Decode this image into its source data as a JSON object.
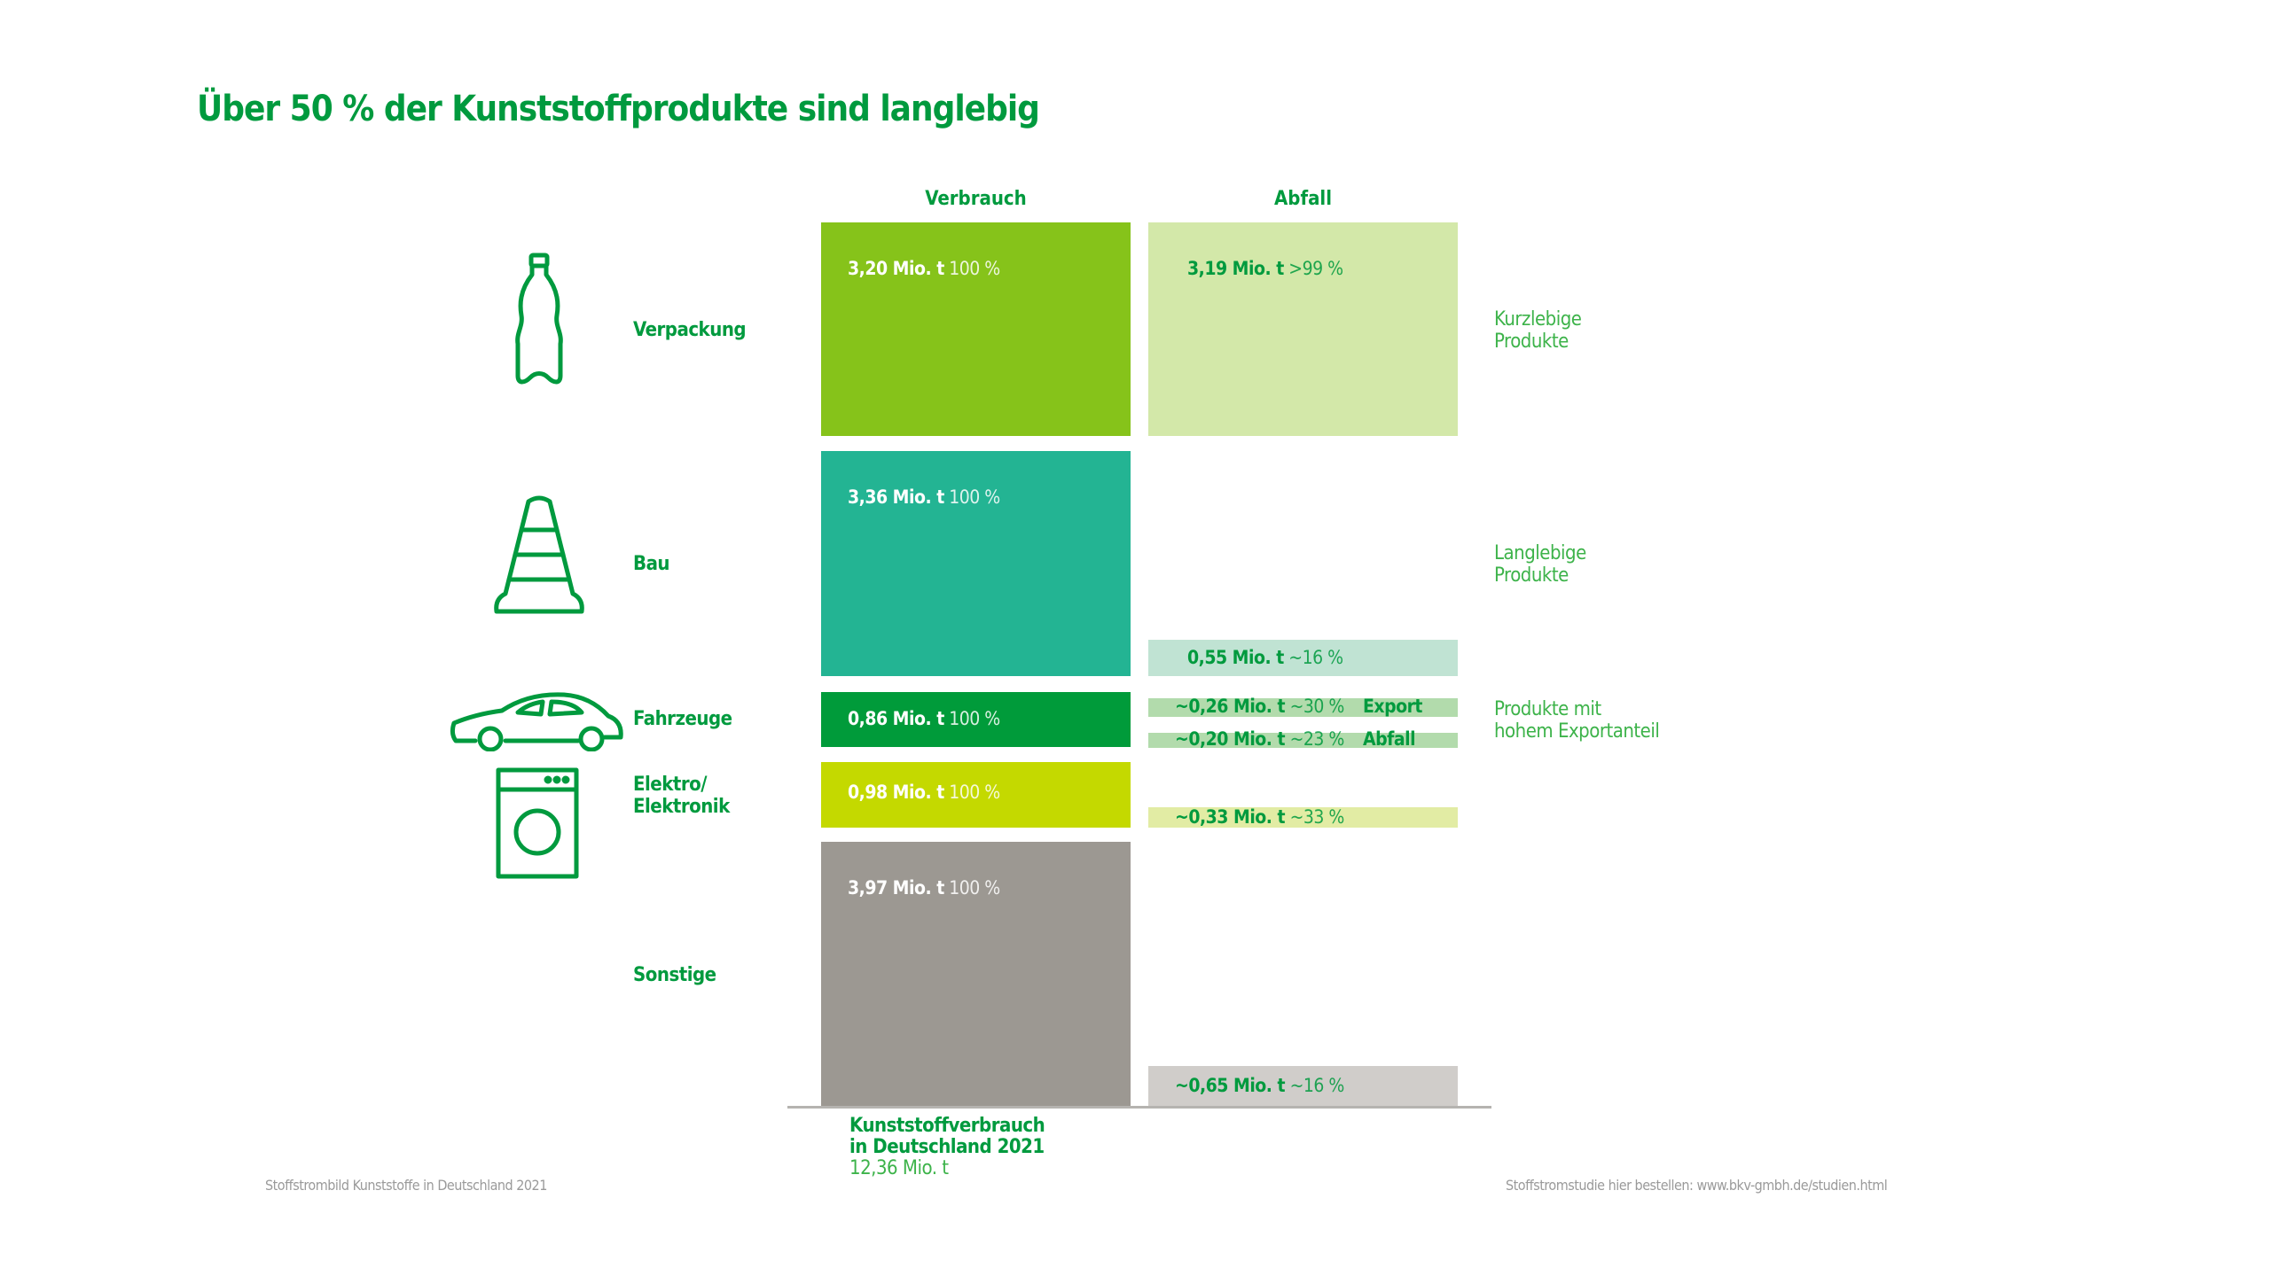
{
  "title": "Über 50 % der Kunststoffprodukte sind langlebig",
  "chart_data": {
    "type": "table",
    "title": "Über 50 % der Kunststoffprodukte sind langlebig",
    "columns": [
      "Verbrauch",
      "Abfall"
    ],
    "categories": [
      {
        "name": "Verpackung",
        "icon": "bottle-icon",
        "color": "#86c31a",
        "waste_color": "#d3e8a9",
        "consumption": {
          "value_text": "3,20 Mio. t",
          "pct_text": "100 %",
          "value": 3.2
        },
        "waste": [
          {
            "value_text": "3,19 Mio. t",
            "pct_text": ">99 %",
            "value": 3.19,
            "tag": ""
          }
        ]
      },
      {
        "name": "Bau",
        "icon": "traffic-cone-icon",
        "color": "#23b493",
        "waste_color": "#c0e3d3",
        "consumption": {
          "value_text": "3,36 Mio. t",
          "pct_text": "100 %",
          "value": 3.36
        },
        "waste": [
          {
            "value_text": "0,55 Mio. t",
            "pct_text": "~16 %",
            "value": 0.55,
            "tag": ""
          }
        ]
      },
      {
        "name": "Fahrzeuge",
        "icon": "car-icon",
        "color": "#009b3a",
        "waste_color": "#b2dbac",
        "consumption": {
          "value_text": "0,86 Mio. t",
          "pct_text": "100 %",
          "value": 0.86
        },
        "waste": [
          {
            "value_text": "~0,26 Mio. t",
            "pct_text": "~30 %",
            "value": 0.26,
            "tag": "Export"
          },
          {
            "value_text": "~0,20 Mio. t",
            "pct_text": "~23 %",
            "value": 0.2,
            "tag": "Abfall"
          }
        ]
      },
      {
        "name": "Elektro/ Elektronik",
        "name_lines": [
          "Elektro/",
          "Elektronik"
        ],
        "icon": "washing-machine-icon",
        "color": "#c4d900",
        "waste_color": "#e2eca4",
        "consumption": {
          "value_text": "0,98 Mio. t",
          "pct_text": "100 %",
          "value": 0.98
        },
        "waste": [
          {
            "value_text": "~0,33 Mio. t",
            "pct_text": "~33 %",
            "value": 0.33,
            "tag": ""
          }
        ]
      },
      {
        "name": "Sonstige",
        "icon": "",
        "color": "#9c9892",
        "waste_color": "#d0cdca",
        "consumption": {
          "value_text": "3,97 Mio. t",
          "pct_text": "100 %",
          "value": 3.97
        },
        "waste": [
          {
            "value_text": "~0,65 Mio. t",
            "pct_text": "~16 %",
            "value": 0.65,
            "tag": ""
          }
        ]
      }
    ],
    "groups": [
      {
        "lines": [
          "Kurzlebige",
          "Produkte"
        ]
      },
      {
        "lines": [
          "Langlebige",
          "Produkte"
        ]
      },
      {
        "lines": [
          "Produkte mit",
          "hohem Exportanteil"
        ]
      }
    ],
    "total": {
      "lines": [
        "Kunststoffverbrauch",
        "in Deutschland 2021"
      ],
      "value_text": "12,36 Mio. t",
      "value": 12.36
    }
  },
  "footer": {
    "left": "Stoffstrombild Kunststoffe in Deutschland 2021",
    "right": "Stoffstromstudie hier bestellen: www.bkv-gmbh.de/studien.html"
  }
}
